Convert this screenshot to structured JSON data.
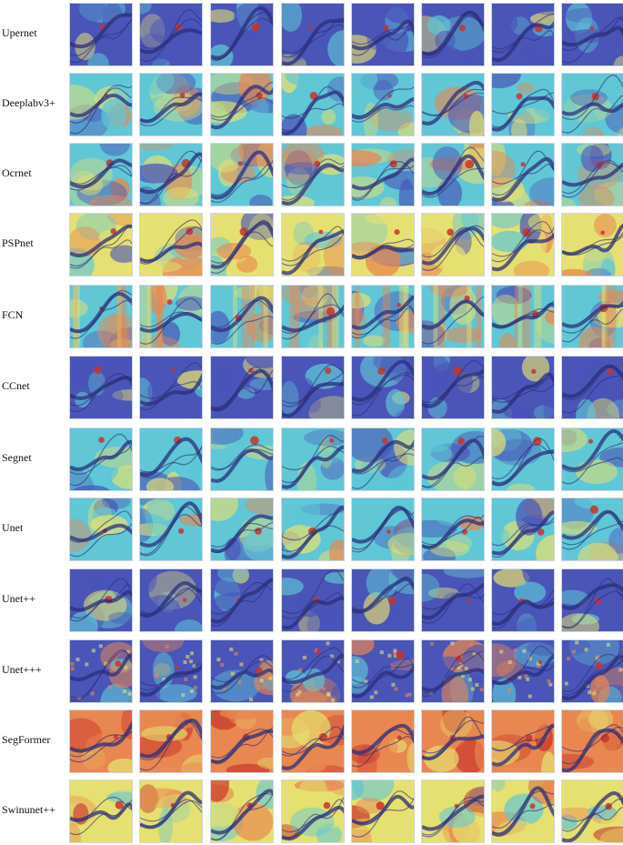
{
  "figure": {
    "rows": [
      {
        "label": "Upernet",
        "style": "cool"
      },
      {
        "label": "Deeplabv3+",
        "style": "mixed"
      },
      {
        "label": "Ocrnet",
        "style": "warm-blue"
      },
      {
        "label": "PSPnet",
        "style": "mixed-warm"
      },
      {
        "label": "FCN",
        "style": "stripe"
      },
      {
        "label": "CCnet",
        "style": "cool"
      },
      {
        "label": "Segnet",
        "style": "teal"
      },
      {
        "label": "Unet",
        "style": "mixed"
      },
      {
        "label": "Unet++",
        "style": "cool"
      },
      {
        "label": "Unet+++",
        "style": "grid"
      },
      {
        "label": "SegFormer",
        "style": "hot"
      },
      {
        "label": "Swinunet++",
        "style": "warm"
      }
    ],
    "columns_per_row": 8
  },
  "colors": {
    "low": "#4a55b8",
    "mid_low": "#5fc7d6",
    "mid": "#e6e070",
    "high": "#e8874f",
    "peak": "#c8342b",
    "structure": "#2b2f7a"
  }
}
